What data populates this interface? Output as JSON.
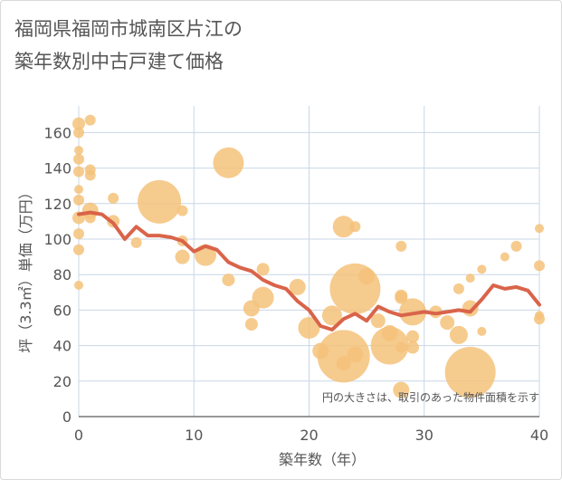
{
  "title_line1": "福岡県福岡市城南区片江の",
  "title_line2": "築年数別中古戸建て価格",
  "chart_data": {
    "type": "scatter",
    "xlabel": "築年数（年）",
    "ylabel": "坪（3.3㎡）単価（万円）",
    "xlim": [
      0,
      40
    ],
    "ylim": [
      0,
      175
    ],
    "xticks": [
      0,
      10,
      20,
      30,
      40
    ],
    "yticks": [
      0,
      20,
      40,
      60,
      80,
      100,
      120,
      140,
      160
    ],
    "grid": true,
    "note": "円の大きさは、取引のあった物件面積を示す",
    "colors": {
      "bubble": "#f4c27a",
      "line": "#d9644a",
      "grid": "#c8d7e6"
    },
    "bubbles": [
      {
        "x": 0,
        "y": 165,
        "r": 7
      },
      {
        "x": 0,
        "y": 160,
        "r": 6
      },
      {
        "x": 0,
        "y": 150,
        "r": 5
      },
      {
        "x": 0,
        "y": 145,
        "r": 6
      },
      {
        "x": 0,
        "y": 138,
        "r": 6
      },
      {
        "x": 0,
        "y": 128,
        "r": 5
      },
      {
        "x": 0,
        "y": 122,
        "r": 6
      },
      {
        "x": 0,
        "y": 112,
        "r": 7
      },
      {
        "x": 0,
        "y": 103,
        "r": 6
      },
      {
        "x": 0,
        "y": 94,
        "r": 6
      },
      {
        "x": 0,
        "y": 74,
        "r": 5
      },
      {
        "x": 1,
        "y": 167,
        "r": 6
      },
      {
        "x": 1,
        "y": 139,
        "r": 6
      },
      {
        "x": 1,
        "y": 136,
        "r": 6
      },
      {
        "x": 1,
        "y": 116,
        "r": 9
      },
      {
        "x": 1,
        "y": 112,
        "r": 6
      },
      {
        "x": 3,
        "y": 123,
        "r": 6
      },
      {
        "x": 3,
        "y": 110,
        "r": 7
      },
      {
        "x": 5,
        "y": 98,
        "r": 6
      },
      {
        "x": 7,
        "y": 121,
        "r": 24
      },
      {
        "x": 9,
        "y": 116,
        "r": 6
      },
      {
        "x": 9,
        "y": 99,
        "r": 6
      },
      {
        "x": 9,
        "y": 90,
        "r": 8
      },
      {
        "x": 11,
        "y": 91,
        "r": 12
      },
      {
        "x": 13,
        "y": 143,
        "r": 17
      },
      {
        "x": 13,
        "y": 77,
        "r": 7
      },
      {
        "x": 15,
        "y": 61,
        "r": 9
      },
      {
        "x": 15,
        "y": 52,
        "r": 7
      },
      {
        "x": 16,
        "y": 83,
        "r": 7
      },
      {
        "x": 16,
        "y": 67,
        "r": 12
      },
      {
        "x": 19,
        "y": 73,
        "r": 9
      },
      {
        "x": 20,
        "y": 50,
        "r": 12
      },
      {
        "x": 21,
        "y": 37,
        "r": 9
      },
      {
        "x": 22,
        "y": 57,
        "r": 11
      },
      {
        "x": 23,
        "y": 107,
        "r": 12
      },
      {
        "x": 23,
        "y": 34,
        "r": 29
      },
      {
        "x": 23,
        "y": 30,
        "r": 8
      },
      {
        "x": 24,
        "y": 107,
        "r": 6
      },
      {
        "x": 24,
        "y": 72,
        "r": 28
      },
      {
        "x": 24,
        "y": 35,
        "r": 9
      },
      {
        "x": 25,
        "y": 79,
        "r": 9
      },
      {
        "x": 26,
        "y": 54,
        "r": 8
      },
      {
        "x": 27,
        "y": 47,
        "r": 9
      },
      {
        "x": 27,
        "y": 40,
        "r": 21
      },
      {
        "x": 28,
        "y": 96,
        "r": 6
      },
      {
        "x": 28,
        "y": 68,
        "r": 7
      },
      {
        "x": 28,
        "y": 67,
        "r": 7
      },
      {
        "x": 28,
        "y": 39,
        "r": 6
      },
      {
        "x": 28,
        "y": 15,
        "r": 9
      },
      {
        "x": 29,
        "y": 59,
        "r": 15
      },
      {
        "x": 29,
        "y": 45,
        "r": 7
      },
      {
        "x": 29,
        "y": 39,
        "r": 7
      },
      {
        "x": 31,
        "y": 59,
        "r": 7
      },
      {
        "x": 32,
        "y": 53,
        "r": 8
      },
      {
        "x": 33,
        "y": 72,
        "r": 6
      },
      {
        "x": 33,
        "y": 46,
        "r": 10
      },
      {
        "x": 34,
        "y": 25,
        "r": 28
      },
      {
        "x": 34,
        "y": 61,
        "r": 9
      },
      {
        "x": 34,
        "y": 78,
        "r": 5
      },
      {
        "x": 35,
        "y": 83,
        "r": 5
      },
      {
        "x": 35,
        "y": 48,
        "r": 5
      },
      {
        "x": 37,
        "y": 90,
        "r": 5
      },
      {
        "x": 38,
        "y": 96,
        "r": 6
      },
      {
        "x": 40,
        "y": 106,
        "r": 5
      },
      {
        "x": 40,
        "y": 85,
        "r": 6
      },
      {
        "x": 40,
        "y": 57,
        "r": 5
      },
      {
        "x": 40,
        "y": 55,
        "r": 6
      }
    ],
    "trend": {
      "x": [
        0,
        1,
        2,
        3,
        4,
        5,
        6,
        7,
        8,
        9,
        10,
        11,
        12,
        13,
        14,
        15,
        16,
        17,
        18,
        19,
        20,
        21,
        22,
        23,
        24,
        25,
        26,
        27,
        28,
        29,
        30,
        31,
        32,
        33,
        34,
        35,
        36,
        37,
        38,
        39,
        40
      ],
      "y": [
        114,
        115,
        114,
        109,
        100,
        107,
        102,
        102,
        101,
        99,
        93,
        96,
        94,
        87,
        84,
        82,
        77,
        74,
        72,
        65,
        60,
        51,
        49,
        55,
        58,
        54,
        62,
        59,
        57,
        58,
        59,
        58,
        59,
        60,
        59,
        66,
        74,
        72,
        73,
        71,
        63
      ]
    }
  }
}
